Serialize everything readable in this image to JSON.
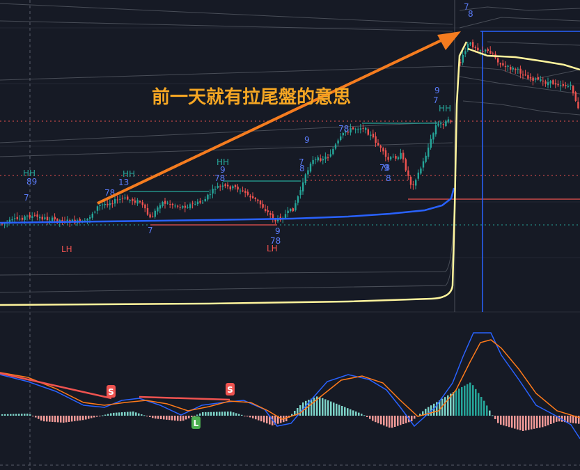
{
  "chart_data": {
    "type": "candlestick",
    "annotation_text": "前一天就有拉尾盤的意思",
    "colors": {
      "background": "#161a25",
      "up": "#26a69a",
      "down": "#ef5350",
      "vwap_blue": "#2962ff",
      "vwap_yellow": "#fff59d",
      "arrow": "#f57c1f",
      "annotation": "#f5a623",
      "seq_count": "#5b7cfa",
      "hh_label": "#26a69a",
      "lh_label": "#ef5350",
      "macd_line": "#2962ff",
      "signal_line": "#ff7a1a"
    },
    "price_labels": [
      {
        "text": "HH",
        "kind": "hh"
      },
      {
        "text": "89",
        "kind": "seq"
      },
      {
        "text": "7",
        "kind": "seq"
      },
      {
        "text": "LH",
        "kind": "lh"
      },
      {
        "text": "HH",
        "kind": "hh"
      },
      {
        "text": "13",
        "kind": "seq"
      },
      {
        "text": "78",
        "kind": "seq"
      },
      {
        "text": "7",
        "kind": "seq"
      },
      {
        "text": "HH",
        "kind": "hh"
      },
      {
        "text": "9",
        "kind": "seq"
      },
      {
        "text": "78",
        "kind": "seq"
      },
      {
        "text": "9",
        "kind": "seq"
      },
      {
        "text": "78",
        "kind": "seq"
      },
      {
        "text": "LH",
        "kind": "lh"
      },
      {
        "text": "9",
        "kind": "seq"
      },
      {
        "text": "7",
        "kind": "seq"
      },
      {
        "text": "8",
        "kind": "seq"
      },
      {
        "text": "78",
        "kind": "seq"
      },
      {
        "text": "78",
        "kind": "seq"
      },
      {
        "text": "9",
        "kind": "seq"
      },
      {
        "text": "8",
        "kind": "seq"
      },
      {
        "text": "7",
        "kind": "seq"
      },
      {
        "text": "9",
        "kind": "seq"
      },
      {
        "text": "HH",
        "kind": "hh"
      },
      {
        "text": "7",
        "kind": "seq"
      },
      {
        "text": "8",
        "kind": "seq"
      }
    ],
    "macd_markers": [
      {
        "text": "S",
        "kind": "sell"
      },
      {
        "text": "S",
        "kind": "sell"
      },
      {
        "text": "L",
        "kind": "buy"
      }
    ]
  }
}
